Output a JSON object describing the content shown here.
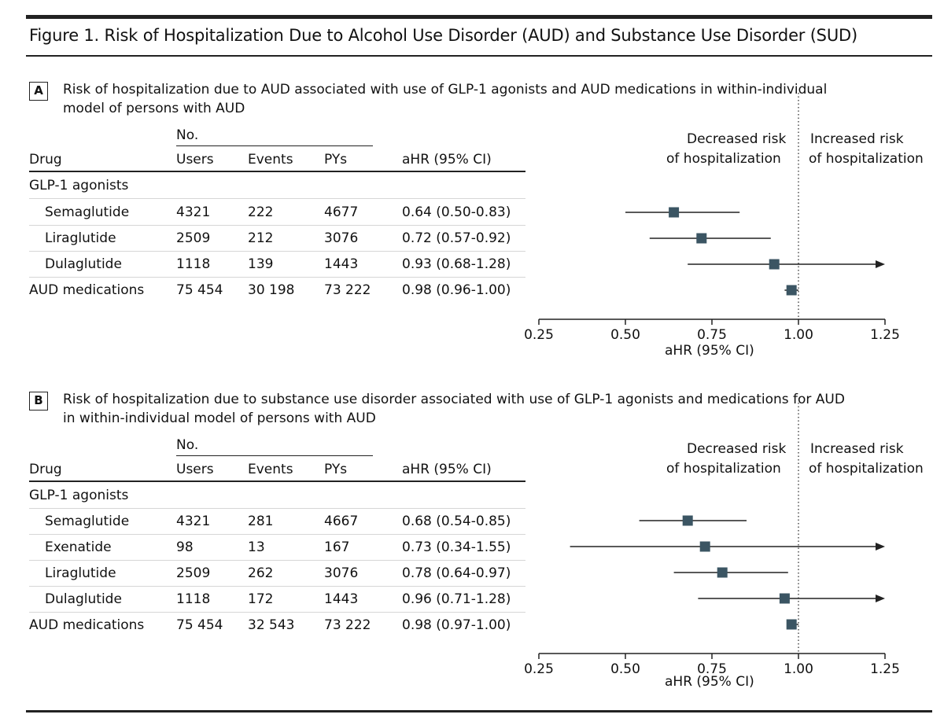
{
  "figure": {
    "title": "Figure 1. Risk of Hospitalization Due to Alcohol Use Disorder (AUD) and Substance Use Disorder (SUD)"
  },
  "table_headers": {
    "no": "No.",
    "drug": "Drug",
    "users": "Users",
    "events": "Events",
    "pys": "PYs",
    "ahr": "aHR (95% CI)"
  },
  "panels": [
    {
      "letter": "A",
      "caption_line1": "Risk of hospitalization due to AUD associated with use of GLP-1 agonists and AUD medications in within-individual",
      "caption_line2": "model of persons with AUD",
      "group_label": "GLP-1 agonists",
      "rows": [
        {
          "drug": "Semaglutide",
          "users": "4321",
          "events": "222",
          "pys": "4677",
          "ahr_text": "0.64 (0.50-0.83)",
          "indent": true
        },
        {
          "drug": "Liraglutide",
          "users": "2509",
          "events": "212",
          "pys": "3076",
          "ahr_text": "0.72 (0.57-0.92)",
          "indent": true
        },
        {
          "drug": "Dulaglutide",
          "users": "1118",
          "events": "139",
          "pys": "1443",
          "ahr_text": "0.93 (0.68-1.28)",
          "indent": true
        },
        {
          "drug": "AUD medications",
          "users": "75 454",
          "events": "30 198",
          "pys": "73 222",
          "ahr_text": "0.98 (0.96-1.00)",
          "indent": false
        }
      ],
      "decreased_line1": "Decreased risk",
      "decreased_line2": "of hospitalization",
      "increased_line1": "Increased risk",
      "increased_line2": "of hospitalization",
      "x_axis_label": "aHR (95% CI)"
    },
    {
      "letter": "B",
      "caption_line1": "Risk of hospitalization due to substance use disorder associated with use of GLP-1 agonists and medications for AUD",
      "caption_line2": "in within-individual model of persons with AUD",
      "group_label": "GLP-1 agonists",
      "rows": [
        {
          "drug": "Semaglutide",
          "users": "4321",
          "events": "281",
          "pys": "4667",
          "ahr_text": "0.68 (0.54-0.85)",
          "indent": true
        },
        {
          "drug": "Exenatide",
          "users": "98",
          "events": "13",
          "pys": "167",
          "ahr_text": "0.73 (0.34-1.55)",
          "indent": true
        },
        {
          "drug": "Liraglutide",
          "users": "2509",
          "events": "262",
          "pys": "3076",
          "ahr_text": "0.78 (0.64-0.97)",
          "indent": true
        },
        {
          "drug": "Dulaglutide",
          "users": "1118",
          "events": "172",
          "pys": "1443",
          "ahr_text": "0.96 (0.71-1.28)",
          "indent": true
        },
        {
          "drug": "AUD medications",
          "users": "75 454",
          "events": "32 543",
          "pys": "73 222",
          "ahr_text": "0.98 (0.97-1.00)",
          "indent": false
        }
      ],
      "decreased_line1": "Decreased risk",
      "decreased_line2": "of hospitalization",
      "increased_line1": "Increased risk",
      "increased_line2": "of hospitalization",
      "x_axis_label": "aHR (95% CI)"
    }
  ],
  "chart_data": [
    {
      "type": "forest",
      "title": "A",
      "xlabel": "aHR (95% CI)",
      "xlim": [
        0.25,
        1.25
      ],
      "ticks": [
        0.25,
        0.5,
        0.75,
        1.0,
        1.25
      ],
      "tick_labels": [
        "0.25",
        "0.50",
        "0.75",
        "1.00",
        "1.25"
      ],
      "reference_line": 1.0,
      "series": [
        {
          "name": "Semaglutide",
          "estimate": 0.64,
          "lower": 0.5,
          "upper": 0.83
        },
        {
          "name": "Liraglutide",
          "estimate": 0.72,
          "lower": 0.57,
          "upper": 0.92
        },
        {
          "name": "Dulaglutide",
          "estimate": 0.93,
          "lower": 0.68,
          "upper": 1.28
        },
        {
          "name": "AUD medications",
          "estimate": 0.98,
          "lower": 0.96,
          "upper": 1.0
        }
      ]
    },
    {
      "type": "forest",
      "title": "B",
      "xlabel": "aHR (95% CI)",
      "xlim": [
        0.25,
        1.25
      ],
      "ticks": [
        0.25,
        0.5,
        0.75,
        1.0,
        1.25
      ],
      "tick_labels": [
        "0.25",
        "0.50",
        "0.75",
        "1.00",
        "1.25"
      ],
      "reference_line": 1.0,
      "series": [
        {
          "name": "Semaglutide",
          "estimate": 0.68,
          "lower": 0.54,
          "upper": 0.85
        },
        {
          "name": "Exenatide",
          "estimate": 0.73,
          "lower": 0.34,
          "upper": 1.55
        },
        {
          "name": "Liraglutide",
          "estimate": 0.78,
          "lower": 0.64,
          "upper": 0.97
        },
        {
          "name": "Dulaglutide",
          "estimate": 0.96,
          "lower": 0.71,
          "upper": 1.28
        },
        {
          "name": "AUD medications",
          "estimate": 0.98,
          "lower": 0.97,
          "upper": 1.0
        }
      ]
    }
  ],
  "colors": {
    "marker": "#3b5563",
    "line": "#222222"
  }
}
